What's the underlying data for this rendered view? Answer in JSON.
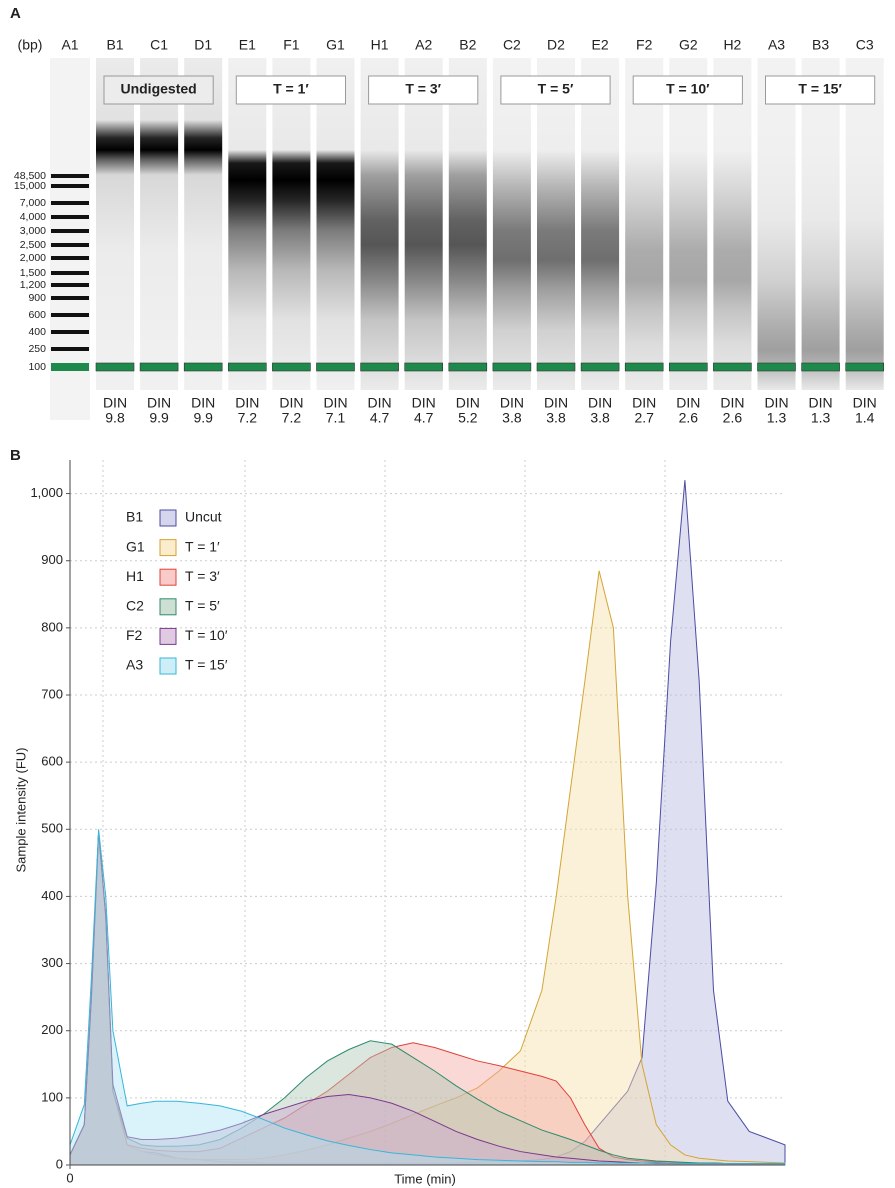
{
  "chart_data": [
    {
      "type": "gel",
      "panel_label": "A",
      "unit_label": "(bp)",
      "ladder_lane": "A1",
      "ladder": [
        {
          "value": 48500,
          "label": "48,500"
        },
        {
          "value": 15000,
          "label": "15,000"
        },
        {
          "value": 7000,
          "label": "7,000"
        },
        {
          "value": 4000,
          "label": "4,000"
        },
        {
          "value": 3000,
          "label": "3,000"
        },
        {
          "value": 2500,
          "label": "2,500"
        },
        {
          "value": 2000,
          "label": "2,000"
        },
        {
          "value": 1500,
          "label": "1,500"
        },
        {
          "value": 1200,
          "label": "1,200"
        },
        900,
        600,
        400,
        250,
        100
      ],
      "lanes": [
        "B1",
        "C1",
        "D1",
        "E1",
        "F1",
        "G1",
        "H1",
        "A2",
        "B2",
        "C2",
        "D2",
        "E2",
        "F2",
        "G2",
        "H2",
        "A3",
        "B3",
        "C3"
      ],
      "groups": [
        "Undigested",
        "T = 1′",
        "T = 3′",
        "T = 5′",
        "T = 10′",
        "T = 15′"
      ],
      "din_label": "DIN",
      "din": [
        9.8,
        9.9,
        9.9,
        7.2,
        7.2,
        7.1,
        4.7,
        4.7,
        5.2,
        3.8,
        3.8,
        3.8,
        2.7,
        2.6,
        2.6,
        1.3,
        1.3,
        1.4
      ]
    },
    {
      "type": "area",
      "panel_label": "B",
      "y_label": "Sample intensity (FU)",
      "x_label": "Time (min)",
      "x": [
        0,
        2,
        3,
        4,
        5,
        6,
        8,
        10,
        12,
        15,
        18,
        21,
        24,
        27,
        30,
        33,
        36,
        39,
        42,
        45,
        48,
        51,
        54,
        57,
        60,
        63,
        66,
        68,
        70,
        72,
        74,
        76,
        78,
        80,
        82,
        84,
        86,
        88,
        90,
        92,
        95,
        100
      ],
      "xlim": [
        0,
        100
      ],
      "xticks": [
        0
      ],
      "ylim": [
        0,
        1050
      ],
      "yticks": [
        0,
        100,
        200,
        300,
        400,
        500,
        600,
        700,
        800,
        900,
        {
          "value": 1000,
          "label": "1,000"
        }
      ],
      "grid": true,
      "legend": "upper left",
      "series": [
        {
          "sample": "B1",
          "name": "Uncut",
          "color": "#4b4ba3",
          "fill": "#b9b9e2",
          "values": [
            15,
            60,
            250,
            495,
            370,
            110,
            30,
            20,
            18,
            10,
            8,
            5,
            4,
            3,
            3,
            3,
            3,
            3,
            3,
            3,
            3,
            3,
            3,
            4,
            5,
            6,
            8,
            12,
            20,
            35,
            60,
            85,
            110,
            160,
            420,
            780,
            1020,
            720,
            260,
            95,
            50,
            30
          ]
        },
        {
          "sample": "G1",
          "name": "T = 1′",
          "color": "#d3a535",
          "fill": "#f6dfaa",
          "values": [
            15,
            60,
            250,
            495,
            370,
            110,
            30,
            20,
            15,
            10,
            8,
            8,
            8,
            10,
            15,
            22,
            30,
            40,
            50,
            62,
            75,
            88,
            100,
            115,
            140,
            170,
            260,
            400,
            560,
            720,
            885,
            800,
            400,
            150,
            60,
            30,
            15,
            10,
            8,
            6,
            5,
            3
          ]
        },
        {
          "sample": "H1",
          "name": "T = 3′",
          "color": "#e0413b",
          "fill": "#f4a9a4",
          "values": [
            15,
            60,
            250,
            495,
            370,
            110,
            30,
            25,
            22,
            20,
            20,
            25,
            40,
            55,
            70,
            90,
            110,
            135,
            160,
            175,
            182,
            175,
            165,
            155,
            148,
            140,
            132,
            125,
            100,
            60,
            25,
            12,
            8,
            6,
            5,
            4,
            3,
            3,
            3,
            2,
            2,
            2
          ]
        },
        {
          "sample": "C2",
          "name": "T = 5′",
          "color": "#2e8b6e",
          "fill": "#acc8b6",
          "values": [
            15,
            60,
            250,
            495,
            370,
            110,
            40,
            30,
            28,
            28,
            30,
            38,
            55,
            75,
            100,
            130,
            155,
            172,
            185,
            180,
            160,
            140,
            118,
            98,
            80,
            66,
            52,
            45,
            38,
            30,
            22,
            15,
            10,
            8,
            6,
            5,
            4,
            3,
            3,
            2,
            2,
            2
          ]
        },
        {
          "sample": "F2",
          "name": "T = 10′",
          "color": "#7a3a8a",
          "fill": "#cba6cf",
          "values": [
            15,
            60,
            250,
            495,
            370,
            120,
            42,
            38,
            38,
            40,
            45,
            52,
            62,
            75,
            85,
            95,
            102,
            105,
            100,
            92,
            80,
            65,
            50,
            38,
            28,
            20,
            15,
            12,
            10,
            8,
            6,
            5,
            4,
            3,
            3,
            2,
            2,
            2,
            2,
            2,
            2,
            2
          ]
        },
        {
          "sample": "A3",
          "name": "T = 15′",
          "color": "#37b6d8",
          "fill": "#aee2f2",
          "values": [
            30,
            90,
            280,
            500,
            400,
            200,
            88,
            92,
            95,
            95,
            92,
            88,
            80,
            68,
            55,
            45,
            36,
            29,
            23,
            18,
            15,
            12,
            10,
            8,
            7,
            6,
            5,
            5,
            4,
            4,
            3,
            3,
            3,
            3,
            2,
            2,
            2,
            2,
            2,
            2,
            2,
            2
          ]
        }
      ]
    }
  ]
}
